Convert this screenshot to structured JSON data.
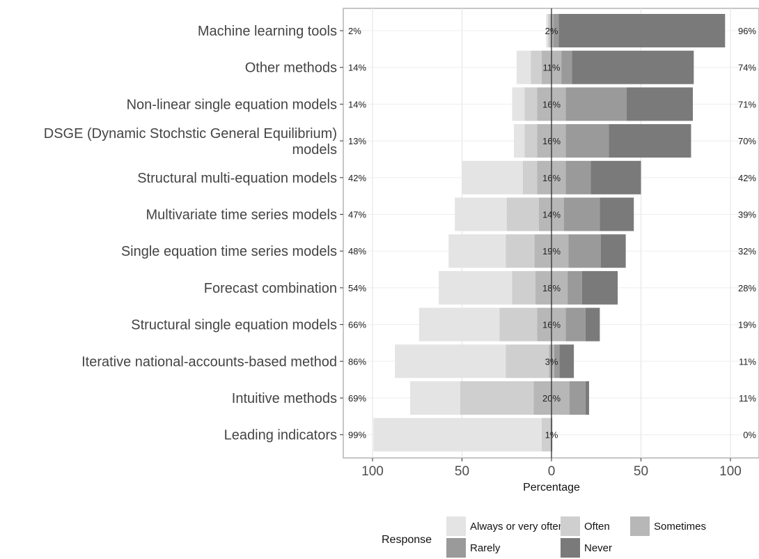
{
  "chart_data": {
    "type": "bar",
    "orientation": "horizontal-diverging",
    "xlabel": "Percentage",
    "xlim": [
      -100,
      100
    ],
    "x_ticks": [
      -100,
      -50,
      0,
      50,
      100
    ],
    "x_tick_labels": [
      "100",
      "50",
      "0",
      "50",
      "100"
    ],
    "grid": true,
    "legend": {
      "title": "Response",
      "position": "bottom",
      "items": [
        {
          "name": "Always or very often",
          "color": "#e4e4e4"
        },
        {
          "name": "Often",
          "color": "#cfcfcf"
        },
        {
          "name": "Sometimes",
          "color": "#b7b7b7"
        },
        {
          "name": "Rarely",
          "color": "#9a9a9a"
        },
        {
          "name": "Never",
          "color": "#7a7a7a"
        }
      ]
    },
    "series_names": [
      "Always or very often",
      "Often",
      "Sometimes",
      "Rarely",
      "Never"
    ],
    "categories": [
      "Machine learning tools",
      "Other methods",
      "Non-linear single equation models",
      "DSGE (Dynamic Stochstic General Equilibrium) models",
      "Structural multi-equation models",
      "Multivariate time series models",
      "Single equation time series models",
      "Forecast combination",
      "Structural single equation models",
      "Iterative national-accounts-based method",
      "Intuitive methods",
      "Leading indicators"
    ],
    "category_lines": [
      [
        "Machine learning tools"
      ],
      [
        "Other methods"
      ],
      [
        "Non-linear single equation models"
      ],
      [
        "DSGE (Dynamic Stochstic General Equilibrium)",
        "models"
      ],
      [
        "Structural multi-equation models"
      ],
      [
        "Multivariate time series models"
      ],
      [
        "Single equation time series models"
      ],
      [
        "Forecast combination"
      ],
      [
        "Structural single equation models"
      ],
      [
        "Iterative national-accounts-based method"
      ],
      [
        "Intuitive methods"
      ],
      [
        "Leading indicators"
      ]
    ],
    "values": [
      [
        1,
        1,
        2,
        3,
        93
      ],
      [
        8,
        6,
        11,
        6,
        68
      ],
      [
        7,
        7,
        16,
        34,
        37
      ],
      [
        6,
        7,
        16,
        24,
        46
      ],
      [
        34,
        8,
        16,
        14,
        28
      ],
      [
        29,
        18,
        14,
        20,
        19
      ],
      [
        32,
        16,
        19,
        18,
        14
      ],
      [
        41,
        13,
        18,
        8,
        20
      ],
      [
        45,
        21,
        16,
        11,
        8
      ],
      [
        62,
        24,
        3,
        3,
        8
      ],
      [
        28,
        41,
        20,
        9,
        2
      ],
      [
        94,
        5,
        1,
        0,
        0
      ]
    ],
    "left_labels": [
      "2%",
      "14%",
      "14%",
      "13%",
      "42%",
      "47%",
      "48%",
      "54%",
      "66%",
      "86%",
      "69%",
      "99%"
    ],
    "center_labels": [
      "2%",
      "11%",
      "16%",
      "16%",
      "16%",
      "14%",
      "19%",
      "18%",
      "16%",
      "3%",
      "20%",
      "1%"
    ],
    "right_labels": [
      "96%",
      "74%",
      "71%",
      "70%",
      "42%",
      "39%",
      "32%",
      "28%",
      "19%",
      "11%",
      "11%",
      "0%"
    ]
  }
}
